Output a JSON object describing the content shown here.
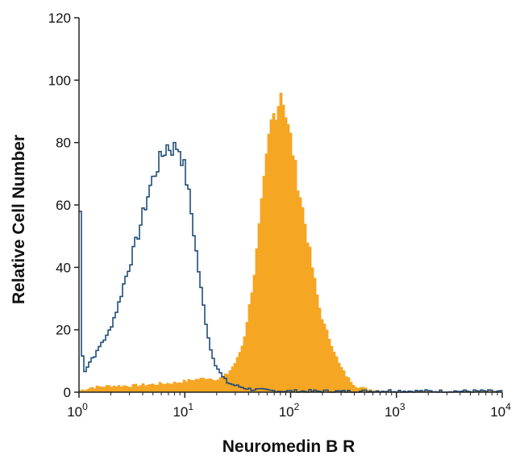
{
  "chart_data": {
    "type": "area",
    "xscale": "log",
    "xlim": [
      1,
      10000
    ],
    "ylim": [
      0,
      120
    ],
    "xlabel": "Neuromedin B R",
    "ylabel": "Relative Cell Number",
    "grid": false,
    "x_ticks": [
      {
        "value": 1,
        "base": "10",
        "exp": "0"
      },
      {
        "value": 10,
        "base": "10",
        "exp": "1"
      },
      {
        "value": 100,
        "base": "10",
        "exp": "2"
      },
      {
        "value": 1000,
        "base": "10",
        "exp": "3"
      },
      {
        "value": 10000,
        "base": "10",
        "exp": "4"
      }
    ],
    "y_ticks": [
      0,
      20,
      40,
      60,
      80,
      100,
      120
    ],
    "series": [
      {
        "style": "outline",
        "color": "#1f4e79",
        "points": [
          [
            1.0,
            58
          ],
          [
            1.03,
            30
          ],
          [
            1.06,
            7
          ],
          [
            1.12,
            7
          ],
          [
            1.2,
            9
          ],
          [
            1.3,
            11
          ],
          [
            1.4,
            12
          ],
          [
            1.6,
            16
          ],
          [
            1.8,
            18
          ],
          [
            2.0,
            22
          ],
          [
            2.3,
            28
          ],
          [
            2.6,
            35
          ],
          [
            3.0,
            42
          ],
          [
            3.5,
            50
          ],
          [
            4.0,
            58
          ],
          [
            4.6,
            66
          ],
          [
            5.3,
            72
          ],
          [
            6.0,
            76
          ],
          [
            6.6,
            79
          ],
          [
            7.5,
            78
          ],
          [
            8.5,
            79
          ],
          [
            9.5,
            73
          ],
          [
            10.5,
            65
          ],
          [
            11.5,
            55
          ],
          [
            12.5,
            45
          ],
          [
            14,
            32
          ],
          [
            15.5,
            22
          ],
          [
            17,
            14
          ],
          [
            19,
            9
          ],
          [
            22,
            5
          ],
          [
            25,
            3
          ],
          [
            30,
            2
          ],
          [
            40,
            1
          ],
          [
            60,
            0.5
          ],
          [
            100,
            0.3
          ],
          [
            200,
            0.3
          ],
          [
            300,
            0.2
          ],
          [
            500,
            0.3
          ],
          [
            900,
            0.5
          ],
          [
            1500,
            0.3
          ],
          [
            3000,
            0.3
          ],
          [
            6000,
            0.3
          ],
          [
            10000,
            0.2
          ]
        ]
      },
      {
        "style": "filled",
        "color": "#f5a623",
        "points": [
          [
            1.0,
            0.5
          ],
          [
            1.3,
            1.5
          ],
          [
            2.0,
            2
          ],
          [
            3.0,
            2
          ],
          [
            5.0,
            2.5
          ],
          [
            8.0,
            3
          ],
          [
            12,
            4
          ],
          [
            16,
            4.5
          ],
          [
            20,
            4
          ],
          [
            25,
            6
          ],
          [
            30,
            10
          ],
          [
            35,
            16
          ],
          [
            40,
            28
          ],
          [
            45,
            40
          ],
          [
            50,
            55
          ],
          [
            55,
            68
          ],
          [
            60,
            80
          ],
          [
            65,
            88
          ],
          [
            70,
            90
          ],
          [
            75,
            93
          ],
          [
            80,
            98
          ],
          [
            85,
            92
          ],
          [
            90,
            86
          ],
          [
            100,
            80
          ],
          [
            110,
            70
          ],
          [
            125,
            60
          ],
          [
            140,
            50
          ],
          [
            160,
            38
          ],
          [
            180,
            28
          ],
          [
            200,
            22
          ],
          [
            240,
            15
          ],
          [
            280,
            9
          ],
          [
            330,
            5
          ],
          [
            400,
            2
          ],
          [
            500,
            1
          ],
          [
            700,
            0.5
          ],
          [
            1000,
            0.3
          ],
          [
            2000,
            0.2
          ],
          [
            5000,
            0.2
          ],
          [
            10000,
            0.1
          ]
        ]
      }
    ]
  }
}
